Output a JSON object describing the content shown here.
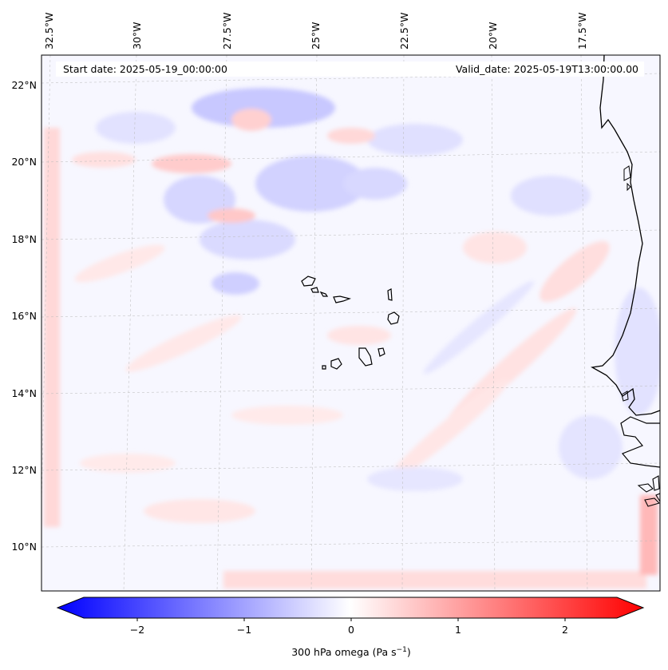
{
  "header": {
    "start_date": "Start date: 2025-05-19_00:00:00",
    "valid_date": "Valid_date: 2025-05-19T13:00:00.00"
  },
  "map": {
    "lon_labels": [
      "32.5°W",
      "30°W",
      "27.5°W",
      "25°W",
      "22.5°W",
      "20°W",
      "17.5°W"
    ],
    "lat_labels": [
      "22°N",
      "20°N",
      "18°N",
      "16°N",
      "14°N",
      "12°N",
      "10°N"
    ],
    "field": "300 hPa omega",
    "colormap": {
      "negative": "#0000ff",
      "zero": "#ffffff",
      "positive": "#ff0000"
    }
  },
  "colorbar": {
    "ticks": [
      "−2",
      "−1",
      "0",
      "1",
      "2"
    ],
    "range": [
      -2.6,
      2.6
    ],
    "label": "300 hPa omega (Pa s",
    "label_sup": "−1",
    "label_close": ")"
  }
}
